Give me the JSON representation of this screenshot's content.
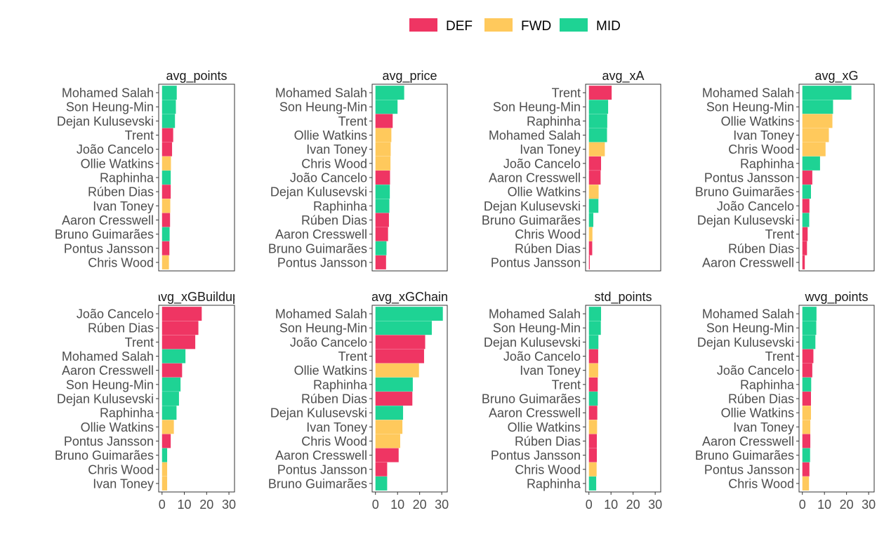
{
  "legend": {
    "position": "top",
    "items": [
      {
        "label": "DEF",
        "color": "#EF3563"
      },
      {
        "label": "FWD",
        "color": "#FFC95C"
      },
      {
        "label": "MID",
        "color": "#1ED394"
      }
    ]
  },
  "colors": {
    "DEF": "#EF3563",
    "FWD": "#FFC95C",
    "MID": "#1ED394"
  },
  "chart_data": [
    {
      "type": "bar",
      "orientation": "horizontal",
      "title": "avg_points",
      "categories": [
        "Mohamed Salah",
        "Son Heung-Min",
        "Dejan Kulusevski",
        "Trent",
        "João Cancelo",
        "Ollie Watkins",
        "Raphinha",
        "Rúben Dias",
        "Ivan Toney",
        "Aaron Cresswell",
        "Bruno Guimarães",
        "Pontus Jansson",
        "Chris Wood"
      ],
      "positions": [
        "MID",
        "MID",
        "MID",
        "DEF",
        "DEF",
        "FWD",
        "MID",
        "DEF",
        "FWD",
        "DEF",
        "MID",
        "DEF",
        "FWD"
      ],
      "values": [
        6.6,
        6.2,
        5.8,
        5.0,
        4.5,
        4.0,
        3.9,
        3.9,
        3.7,
        3.6,
        3.4,
        3.3,
        3.1
      ],
      "xlim": [
        -1.5,
        32.5
      ],
      "xticks": [
        0,
        10,
        20,
        30
      ],
      "show_x_axis": false
    },
    {
      "type": "bar",
      "orientation": "horizontal",
      "title": "avg_price",
      "categories": [
        "Mohamed Salah",
        "Son Heung-Min",
        "Trent",
        "Ollie Watkins",
        "Ivan Toney",
        "Chris Wood",
        "João Cancelo",
        "Dejan Kulusevski",
        "Raphinha",
        "Rúben Dias",
        "Aaron Cresswell",
        "Bruno Guimarães",
        "Pontus Jansson"
      ],
      "positions": [
        "MID",
        "MID",
        "DEF",
        "FWD",
        "FWD",
        "FWD",
        "DEF",
        "MID",
        "MID",
        "DEF",
        "DEF",
        "MID",
        "DEF"
      ],
      "values": [
        13.0,
        10.0,
        7.8,
        7.2,
        6.9,
        6.8,
        6.6,
        6.5,
        6.3,
        6.1,
        5.7,
        5.0,
        4.8
      ],
      "xlim": [
        -1.5,
        32.5
      ],
      "xticks": [
        0,
        10,
        20,
        30
      ],
      "show_x_axis": false
    },
    {
      "type": "bar",
      "orientation": "horizontal",
      "title": "avg_xA",
      "categories": [
        "Trent",
        "Son Heung-Min",
        "Raphinha",
        "Mohamed Salah",
        "Ivan Toney",
        "João Cancelo",
        "Aaron Cresswell",
        "Ollie Watkins",
        "Dejan Kulusevski",
        "Bruno Guimarães",
        "Chris Wood",
        "Rúben Dias",
        "Pontus Jansson"
      ],
      "positions": [
        "DEF",
        "MID",
        "MID",
        "MID",
        "FWD",
        "DEF",
        "DEF",
        "FWD",
        "MID",
        "MID",
        "FWD",
        "DEF",
        "DEF"
      ],
      "values": [
        10.3,
        8.7,
        8.3,
        8.2,
        7.2,
        5.5,
        5.3,
        4.4,
        4.3,
        2.0,
        1.6,
        1.5,
        0.4
      ],
      "xlim": [
        -1.5,
        32.5
      ],
      "xticks": [
        0,
        10,
        20,
        30
      ],
      "show_x_axis": false
    },
    {
      "type": "bar",
      "orientation": "horizontal",
      "title": "avg_xG",
      "categories": [
        "Mohamed Salah",
        "Son Heung-Min",
        "Ollie Watkins",
        "Ivan Toney",
        "Chris Wood",
        "Raphinha",
        "Pontus Jansson",
        "Bruno Guimarães",
        "João Cancelo",
        "Dejan Kulusevski",
        "Trent",
        "Rúben Dias",
        "Aaron Cresswell"
      ],
      "positions": [
        "MID",
        "MID",
        "FWD",
        "FWD",
        "FWD",
        "MID",
        "DEF",
        "MID",
        "DEF",
        "MID",
        "DEF",
        "DEF",
        "DEF"
      ],
      "values": [
        22.2,
        13.9,
        13.6,
        12.0,
        10.5,
        8.0,
        4.5,
        3.9,
        3.2,
        3.1,
        2.4,
        2.1,
        1.1
      ],
      "xlim": [
        -1.5,
        32.5
      ],
      "xticks": [
        0,
        10,
        20,
        30
      ],
      "show_x_axis": false
    },
    {
      "type": "bar",
      "orientation": "horizontal",
      "title": "avg_xGBuildup",
      "categories": [
        "João Cancelo",
        "Rúben Dias",
        "Trent",
        "Mohamed Salah",
        "Aaron Cresswell",
        "Son Heung-Min",
        "Dejan Kulusevski",
        "Raphinha",
        "Ollie Watkins",
        "Pontus Jansson",
        "Bruno Guimarães",
        "Chris Wood",
        "Ivan Toney"
      ],
      "positions": [
        "DEF",
        "DEF",
        "DEF",
        "MID",
        "DEF",
        "MID",
        "MID",
        "MID",
        "FWD",
        "DEF",
        "MID",
        "FWD",
        "FWD"
      ],
      "values": [
        17.8,
        16.3,
        14.9,
        10.5,
        9.0,
        8.3,
        7.6,
        6.5,
        5.3,
        3.9,
        2.3,
        2.3,
        2.3
      ],
      "xlim": [
        -1.5,
        32.5
      ],
      "xticks": [
        0,
        10,
        20,
        30
      ],
      "show_x_axis": true
    },
    {
      "type": "bar",
      "orientation": "horizontal",
      "title": "avg_xGChain",
      "categories": [
        "Mohamed Salah",
        "Son Heung-Min",
        "João Cancelo",
        "Trent",
        "Ollie Watkins",
        "Raphinha",
        "Rúben Dias",
        "Dejan Kulusevski",
        "Ivan Toney",
        "Chris Wood",
        "Aaron Cresswell",
        "Pontus Jansson",
        "Bruno Guimarães"
      ],
      "positions": [
        "MID",
        "MID",
        "DEF",
        "DEF",
        "FWD",
        "MID",
        "DEF",
        "MID",
        "FWD",
        "FWD",
        "DEF",
        "DEF",
        "MID"
      ],
      "values": [
        30.5,
        25.5,
        22.5,
        22.0,
        19.7,
        16.9,
        16.7,
        12.5,
        12.2,
        11.2,
        10.5,
        5.3,
        5.3
      ],
      "xlim": [
        -1.5,
        32.5
      ],
      "xticks": [
        0,
        10,
        20,
        30
      ],
      "show_x_axis": true
    },
    {
      "type": "bar",
      "orientation": "horizontal",
      "title": "std_points",
      "categories": [
        "Mohamed Salah",
        "Son Heung-Min",
        "Dejan Kulusevski",
        "João Cancelo",
        "Ivan Toney",
        "Trent",
        "Bruno Guimarães",
        "Aaron Cresswell",
        "Ollie Watkins",
        "Rúben Dias",
        "Pontus Jansson",
        "Chris Wood",
        "Raphinha"
      ],
      "positions": [
        "MID",
        "MID",
        "MID",
        "DEF",
        "FWD",
        "DEF",
        "MID",
        "DEF",
        "FWD",
        "DEF",
        "DEF",
        "FWD",
        "MID"
      ],
      "values": [
        5.5,
        5.4,
        4.3,
        4.2,
        4.2,
        4.0,
        4.0,
        3.8,
        3.7,
        3.6,
        3.6,
        3.5,
        3.3
      ],
      "xlim": [
        -1.5,
        32.5
      ],
      "xticks": [
        0,
        10,
        20,
        30
      ],
      "show_x_axis": true
    },
    {
      "type": "bar",
      "orientation": "horizontal",
      "title": "wvg_points",
      "categories": [
        "Mohamed Salah",
        "Son Heung-Min",
        "Dejan Kulusevski",
        "Trent",
        "João Cancelo",
        "Raphinha",
        "Rúben Dias",
        "Ollie Watkins",
        "Ivan Toney",
        "Aaron Cresswell",
        "Bruno Guimarães",
        "Pontus Jansson",
        "Chris Wood"
      ],
      "positions": [
        "MID",
        "MID",
        "MID",
        "DEF",
        "DEF",
        "MID",
        "DEF",
        "FWD",
        "FWD",
        "DEF",
        "MID",
        "DEF",
        "FWD"
      ],
      "values": [
        6.4,
        6.3,
        5.9,
        5.0,
        4.5,
        4.0,
        3.9,
        3.9,
        3.6,
        3.6,
        3.5,
        3.2,
        3.0
      ],
      "xlim": [
        -1.5,
        32.5
      ],
      "xticks": [
        0,
        10,
        20,
        30
      ],
      "show_x_axis": true
    }
  ]
}
